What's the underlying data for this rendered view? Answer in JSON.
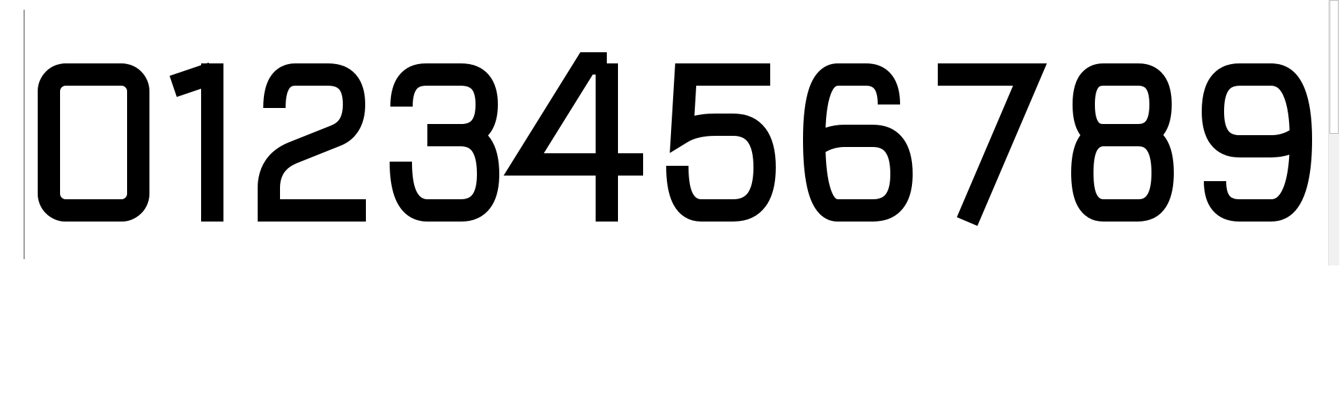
{
  "text": {
    "value": "0123456789"
  },
  "glyphs": [
    {
      "char": "0"
    },
    {
      "char": "1"
    },
    {
      "char": "2"
    },
    {
      "char": "3"
    },
    {
      "char": "4"
    },
    {
      "char": "5"
    },
    {
      "char": "6"
    },
    {
      "char": "7"
    },
    {
      "char": "8"
    },
    {
      "char": "9"
    }
  ],
  "colors": {
    "text": "#000000",
    "background": "#ffffff",
    "caret": "#444444",
    "scrollbar_track": "#f1f1f1",
    "scrollbar_thumb": "#ffffff"
  }
}
